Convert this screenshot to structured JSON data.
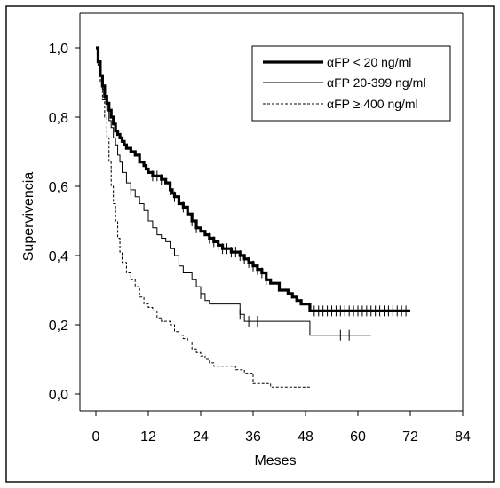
{
  "chart_data": {
    "type": "line",
    "xlabel": "Meses",
    "ylabel": "Supervivencia",
    "xlim": [
      0,
      84
    ],
    "ylim": [
      0,
      1
    ],
    "xticks": [
      0,
      12,
      24,
      36,
      48,
      60,
      72,
      84
    ],
    "xtick_labels": [
      "0",
      "12",
      "24",
      "36",
      "48",
      "60",
      "72",
      "84"
    ],
    "yticks": [
      0,
      0.2,
      0.4,
      0.6,
      0.8,
      1.0
    ],
    "ytick_labels": [
      "0,0",
      "0,2",
      "0,4",
      "0,6",
      "0,8",
      "1,0"
    ],
    "grid": false,
    "legend_position": "top-right",
    "series": [
      {
        "name": "αFP < 20 ng/ml",
        "style": "thick",
        "color": "#000000",
        "x": [
          0,
          0.5,
          1,
          1.5,
          2,
          2.5,
          3,
          3.5,
          4,
          4.5,
          5,
          5.5,
          6,
          6.5,
          7,
          7.5,
          8,
          9,
          10,
          11,
          11.5,
          12,
          13,
          14,
          15,
          16,
          17,
          17.5,
          18,
          19,
          20,
          21,
          22,
          23,
          24,
          25,
          26,
          27,
          28,
          29,
          30,
          31,
          32,
          33,
          34,
          35,
          36,
          37,
          38,
          39,
          40,
          41,
          42,
          43,
          44,
          45,
          46,
          47,
          48,
          49,
          50,
          56,
          60,
          72
        ],
        "y": [
          1.0,
          0.96,
          0.92,
          0.89,
          0.86,
          0.84,
          0.82,
          0.8,
          0.78,
          0.76,
          0.75,
          0.74,
          0.73,
          0.72,
          0.71,
          0.71,
          0.7,
          0.69,
          0.67,
          0.66,
          0.65,
          0.64,
          0.63,
          0.63,
          0.62,
          0.61,
          0.59,
          0.58,
          0.57,
          0.55,
          0.54,
          0.52,
          0.5,
          0.48,
          0.47,
          0.46,
          0.45,
          0.44,
          0.43,
          0.42,
          0.42,
          0.41,
          0.41,
          0.4,
          0.39,
          0.38,
          0.37,
          0.36,
          0.35,
          0.33,
          0.32,
          0.32,
          0.3,
          0.3,
          0.29,
          0.28,
          0.27,
          0.26,
          0.26,
          0.24,
          0.24,
          0.24,
          0.24,
          0.24
        ]
      },
      {
        "name": "αFP 20-399 ng/ml",
        "style": "thin",
        "color": "#000000",
        "x": [
          0,
          0.5,
          1,
          1.5,
          2,
          2.5,
          3,
          3.5,
          4,
          4.5,
          5,
          5.5,
          6,
          7,
          8,
          9,
          10,
          11,
          12,
          13,
          14,
          15,
          16,
          17,
          18,
          19,
          20,
          21,
          22,
          23,
          24,
          25,
          26,
          27,
          28,
          29,
          30,
          31,
          32,
          33,
          34,
          35,
          36,
          38,
          40,
          45,
          48,
          49,
          50,
          55,
          63
        ],
        "y": [
          1.0,
          0.96,
          0.92,
          0.88,
          0.85,
          0.82,
          0.79,
          0.77,
          0.74,
          0.72,
          0.69,
          0.67,
          0.64,
          0.61,
          0.59,
          0.57,
          0.55,
          0.53,
          0.5,
          0.48,
          0.46,
          0.45,
          0.44,
          0.42,
          0.4,
          0.37,
          0.35,
          0.35,
          0.33,
          0.31,
          0.29,
          0.27,
          0.26,
          0.26,
          0.26,
          0.26,
          0.26,
          0.26,
          0.26,
          0.23,
          0.21,
          0.21,
          0.21,
          0.21,
          0.21,
          0.21,
          0.21,
          0.17,
          0.17,
          0.17,
          0.17
        ]
      },
      {
        "name": "αFP ≥ 400 ng/ml",
        "style": "dashed",
        "color": "#000000",
        "x": [
          0,
          0.5,
          1,
          1.5,
          2,
          2.5,
          3,
          3.5,
          4,
          4.5,
          5,
          5.5,
          6,
          7,
          8,
          9,
          10,
          11,
          12,
          13,
          14,
          15,
          16,
          17,
          18,
          19,
          20,
          21,
          22,
          23,
          24,
          25,
          26,
          27,
          28,
          29,
          30,
          32,
          34,
          36,
          38,
          40,
          45,
          49
        ],
        "y": [
          1.0,
          0.95,
          0.9,
          0.85,
          0.8,
          0.74,
          0.67,
          0.6,
          0.55,
          0.5,
          0.45,
          0.41,
          0.38,
          0.35,
          0.33,
          0.31,
          0.28,
          0.26,
          0.25,
          0.24,
          0.22,
          0.21,
          0.21,
          0.2,
          0.18,
          0.17,
          0.16,
          0.15,
          0.13,
          0.12,
          0.11,
          0.1,
          0.09,
          0.08,
          0.08,
          0.08,
          0.08,
          0.07,
          0.06,
          0.03,
          0.03,
          0.02,
          0.02,
          0.02
        ]
      }
    ],
    "censor_marks": [
      {
        "series": 0,
        "x": [
          13,
          14,
          15,
          17,
          18,
          20,
          22,
          23,
          26,
          27,
          28,
          29,
          30,
          31,
          32,
          33,
          34,
          35,
          36,
          37,
          38,
          39,
          50,
          51,
          52,
          53,
          54,
          55,
          56,
          57,
          58,
          59,
          60,
          61,
          62,
          63,
          64,
          65,
          66,
          67,
          68,
          69,
          70,
          71
        ]
      },
      {
        "series": 1,
        "x": [
          8,
          24,
          33,
          35,
          37,
          56,
          58
        ]
      }
    ]
  }
}
